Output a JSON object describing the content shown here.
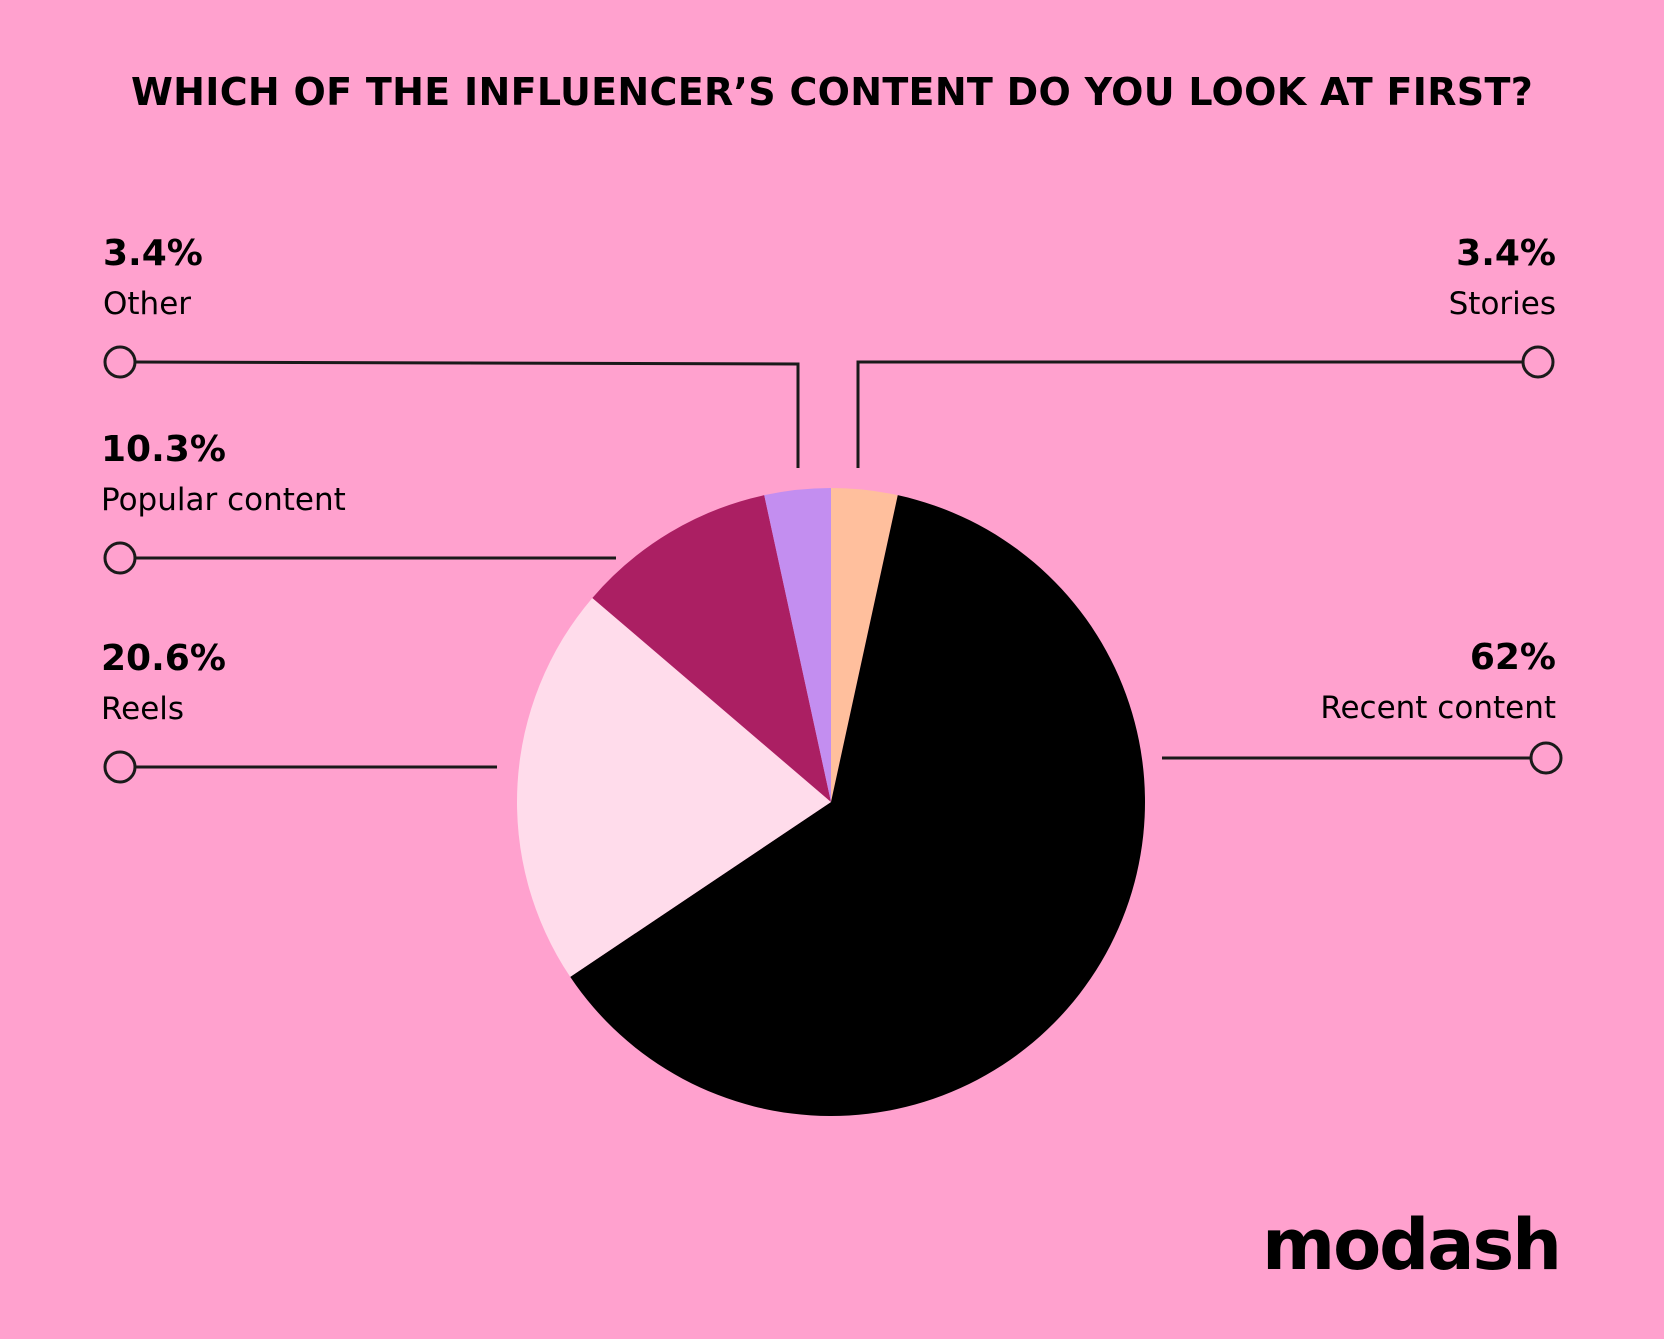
{
  "chart_data": {
    "type": "pie",
    "title": "WHICH OF THE INFLUENCER’S CONTENT DO YOU LOOK AT FIRST?",
    "slices": [
      {
        "key": "stories",
        "label": "Stories",
        "value": 3.4,
        "value_label": "3.4%",
        "color": "#FFBF9D"
      },
      {
        "key": "recent",
        "label": "Recent content",
        "value": 62,
        "value_label": "62%",
        "color": "#000000"
      },
      {
        "key": "reels",
        "label": "Reels",
        "value": 20.6,
        "value_label": "20.6%",
        "color": "#FFDCEB"
      },
      {
        "key": "popular",
        "label": "Popular content",
        "value": 10.3,
        "value_label": "10.3%",
        "color": "#AB1F63"
      },
      {
        "key": "other",
        "label": "Other",
        "value": 3.4,
        "value_label": "3.4%",
        "color": "#C38EF0"
      }
    ]
  },
  "brand": {
    "logo_text": "modash"
  }
}
